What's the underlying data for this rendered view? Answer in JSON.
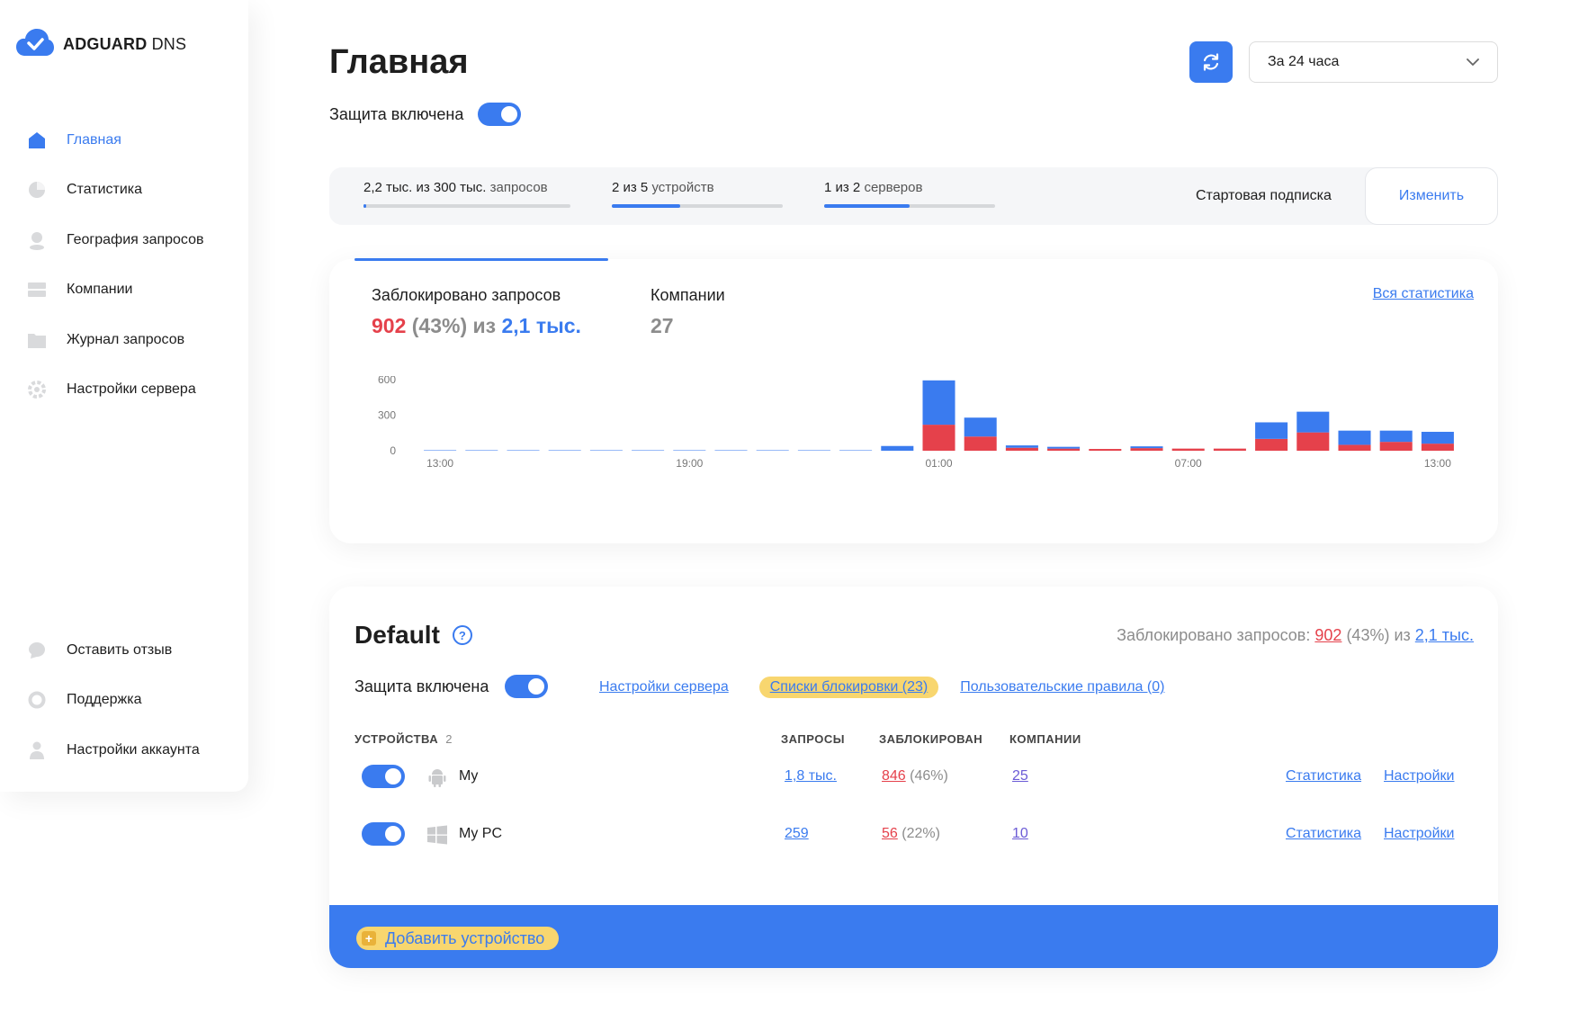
{
  "brand": {
    "name_bold": "ADGUARD",
    "name_thin": "DNS"
  },
  "sidebar": {
    "items": [
      {
        "label": "Главная",
        "icon": "home-icon",
        "active": true
      },
      {
        "label": "Статистика",
        "icon": "pie-chart-icon"
      },
      {
        "label": "География запросов",
        "icon": "location-icon"
      },
      {
        "label": "Компании",
        "icon": "company-icon"
      },
      {
        "label": "Журнал запросов",
        "icon": "folder-icon"
      },
      {
        "label": "Настройки сервера",
        "icon": "gear-icon"
      }
    ],
    "bottom_items": [
      {
        "label": "Оставить отзыв",
        "icon": "chat-icon"
      },
      {
        "label": "Поддержка",
        "icon": "support-icon"
      },
      {
        "label": "Настройки аккаунта",
        "icon": "user-icon"
      }
    ]
  },
  "header": {
    "title": "Главная",
    "protection_label": "Защита включена",
    "protection_on": true,
    "period": "За 24 часа"
  },
  "limits": {
    "requests": {
      "text": "2,2 тыс. из 300 тыс.",
      "suffix": "запросов",
      "fraction": 0.007
    },
    "devices": {
      "text": "2 из 5",
      "suffix": "устройств",
      "fraction": 0.4
    },
    "servers": {
      "text": "1 из 2",
      "suffix": "серверов",
      "fraction": 0.5
    },
    "plan": "Стартовая подписка",
    "change": "Изменить"
  },
  "stats": {
    "blocked_label": "Заблокировано запросов",
    "blocked_value": "902",
    "blocked_pct": "(43%) из",
    "total_value": "2,1 тыс.",
    "companies_label": "Компании",
    "companies_value": "27",
    "all_stats_link": "Вся статистика"
  },
  "chart_data": {
    "type": "bar",
    "stacked": true,
    "yticks": [
      "600",
      "300",
      "0"
    ],
    "ylim": [
      0,
      600
    ],
    "xticks": [
      "13:00",
      "19:00",
      "01:00",
      "07:00",
      "13:00"
    ],
    "series": [
      {
        "color": "#e5414b",
        "values": [
          0,
          0,
          0,
          0,
          0,
          0,
          0,
          0,
          0,
          0,
          0,
          0,
          220,
          120,
          25,
          18,
          15,
          22,
          18,
          18,
          100,
          155,
          50,
          75,
          60
        ]
      },
      {
        "color": "#3a7bef",
        "values": [
          4,
          4,
          4,
          4,
          4,
          4,
          4,
          4,
          4,
          4,
          4,
          40,
          375,
          160,
          20,
          15,
          0,
          15,
          0,
          0,
          140,
          175,
          120,
          95,
          100
        ]
      }
    ]
  },
  "server": {
    "title": "Default",
    "summary_label": "Заблокировано запросов:",
    "summary_blocked": "902",
    "summary_pct": "(43%) из",
    "summary_total": "2,1 тыс.",
    "protection_label": "Защита включена",
    "settings_link": "Настройки сервера",
    "blocklists_link": "Списки блокировки (23)",
    "user_rules_link": "Пользовательские правила (0)",
    "columns": {
      "devices": "УСТРОЙСТВА",
      "devices_count": "2",
      "requests": "ЗАПРОСЫ",
      "blocked": "ЗАБЛОКИРОВАН",
      "companies": "КОМПАНИИ"
    },
    "devices": [
      {
        "name": "My",
        "icon": "android-icon",
        "requests": "1,8 тыс.",
        "blocked": "846",
        "blocked_pct": "(46%)",
        "companies": "25",
        "stats": "Статистика",
        "settings": "Настройки"
      },
      {
        "name": "My PC",
        "icon": "windows-icon",
        "requests": "259",
        "blocked": "56",
        "blocked_pct": "(22%)",
        "companies": "10",
        "stats": "Статистика",
        "settings": "Настройки"
      }
    ],
    "add_device": "Добавить устройство"
  }
}
